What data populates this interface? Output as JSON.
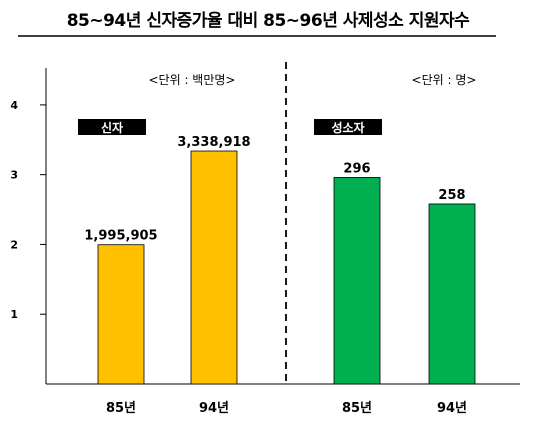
{
  "title": "85~94년 신자증가율 대비 85~96년 사제성소 지원자수",
  "chart_data": [
    {
      "type": "bar",
      "panel": "left",
      "tag": "신자",
      "unit_note": "<단위 : 백만명>",
      "categories": [
        "85년",
        "94년"
      ],
      "values": [
        1.995905,
        3.338918
      ],
      "value_labels": [
        "1,995,905",
        "3,338,918"
      ],
      "ylim": [
        0,
        4.5
      ],
      "yticks": [
        1,
        2,
        3,
        4
      ],
      "color": "#FFC000"
    },
    {
      "type": "bar",
      "panel": "right",
      "tag": "성소자",
      "unit_note": "<단위 : 명>",
      "categories": [
        "85년",
        "94년"
      ],
      "values": [
        296,
        258
      ],
      "value_labels": [
        "296",
        "258"
      ],
      "ylim": [
        0,
        450
      ],
      "color": "#00B050"
    }
  ]
}
